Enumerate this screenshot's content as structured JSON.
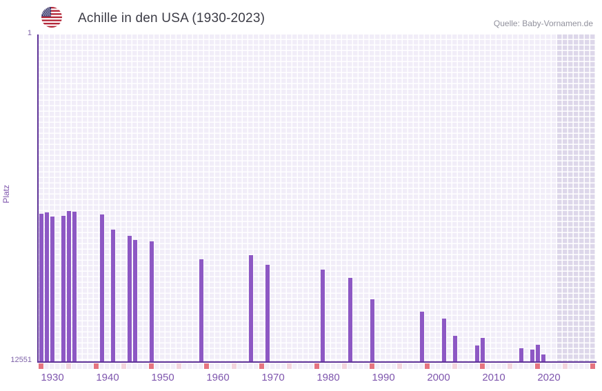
{
  "header": {
    "title": "Achille in den USA (1930-2023)",
    "source": "Quelle: Baby-Vornamen.de",
    "flag_icon": "us-flag-icon"
  },
  "colors": {
    "bar": "#8d58c4",
    "axis_line": "#5e3397",
    "plot_background": "#f1edf8",
    "plot_background_shaded": "#ddd7ea",
    "grid_line": "#ffffff",
    "tick_label": "#7e55ad",
    "title_text": "#3c3c46",
    "source_text": "#90909c",
    "marker_dark": "#e57480",
    "marker_light": "#f3d4dd",
    "flag_red": "#b22234",
    "flag_blue": "#3c3b6e"
  },
  "chart_data": {
    "type": "bar",
    "title": "Achille in den USA (1930-2023)",
    "xlabel": "",
    "ylabel": "Platz",
    "y_axis": {
      "top_label": "1",
      "bottom_label": "12551",
      "min": 1,
      "max": 12551,
      "inverted": true,
      "grid": true
    },
    "x_axis": {
      "start_year": 1928,
      "end_year": 2028,
      "tick_interval": 10,
      "tick_labels": [
        "1930",
        "1940",
        "1950",
        "1960",
        "1970",
        "1980",
        "1990",
        "2000",
        "2010",
        "2020"
      ]
    },
    "shaded_region_start_year": 2022,
    "markers": {
      "dark_years": [
        1928,
        1938,
        1948,
        1958,
        1968,
        1978,
        1988,
        1998,
        2008,
        2018,
        2028
      ],
      "light_years": [
        1933,
        1943,
        1953,
        1963,
        1973,
        1983,
        1993,
        2003,
        2013,
        2023
      ]
    },
    "series": [
      {
        "name": "Achille",
        "points": [
          {
            "year": 1928,
            "rank": 6885
          },
          {
            "year": 1929,
            "rank": 6830
          },
          {
            "year": 1930,
            "rank": 6990
          },
          {
            "year": 1932,
            "rank": 6965
          },
          {
            "year": 1933,
            "rank": 6780
          },
          {
            "year": 1934,
            "rank": 6805
          },
          {
            "year": 1939,
            "rank": 6910
          },
          {
            "year": 1941,
            "rank": 7495
          },
          {
            "year": 1944,
            "rank": 7730
          },
          {
            "year": 1945,
            "rank": 7890
          },
          {
            "year": 1948,
            "rank": 7945
          },
          {
            "year": 1957,
            "rank": 8630
          },
          {
            "year": 1966,
            "rank": 8475
          },
          {
            "year": 1969,
            "rank": 8845
          },
          {
            "year": 1979,
            "rank": 9030
          },
          {
            "year": 1984,
            "rank": 9345
          },
          {
            "year": 1988,
            "rank": 10170
          },
          {
            "year": 1997,
            "rank": 10645
          },
          {
            "year": 2001,
            "rank": 10910
          },
          {
            "year": 2003,
            "rank": 11570
          },
          {
            "year": 2007,
            "rank": 11940
          },
          {
            "year": 2008,
            "rank": 11650
          },
          {
            "year": 2015,
            "rank": 12045
          },
          {
            "year": 2017,
            "rank": 12100
          },
          {
            "year": 2018,
            "rank": 11915
          },
          {
            "year": 2019,
            "rank": 12285
          }
        ]
      }
    ]
  }
}
